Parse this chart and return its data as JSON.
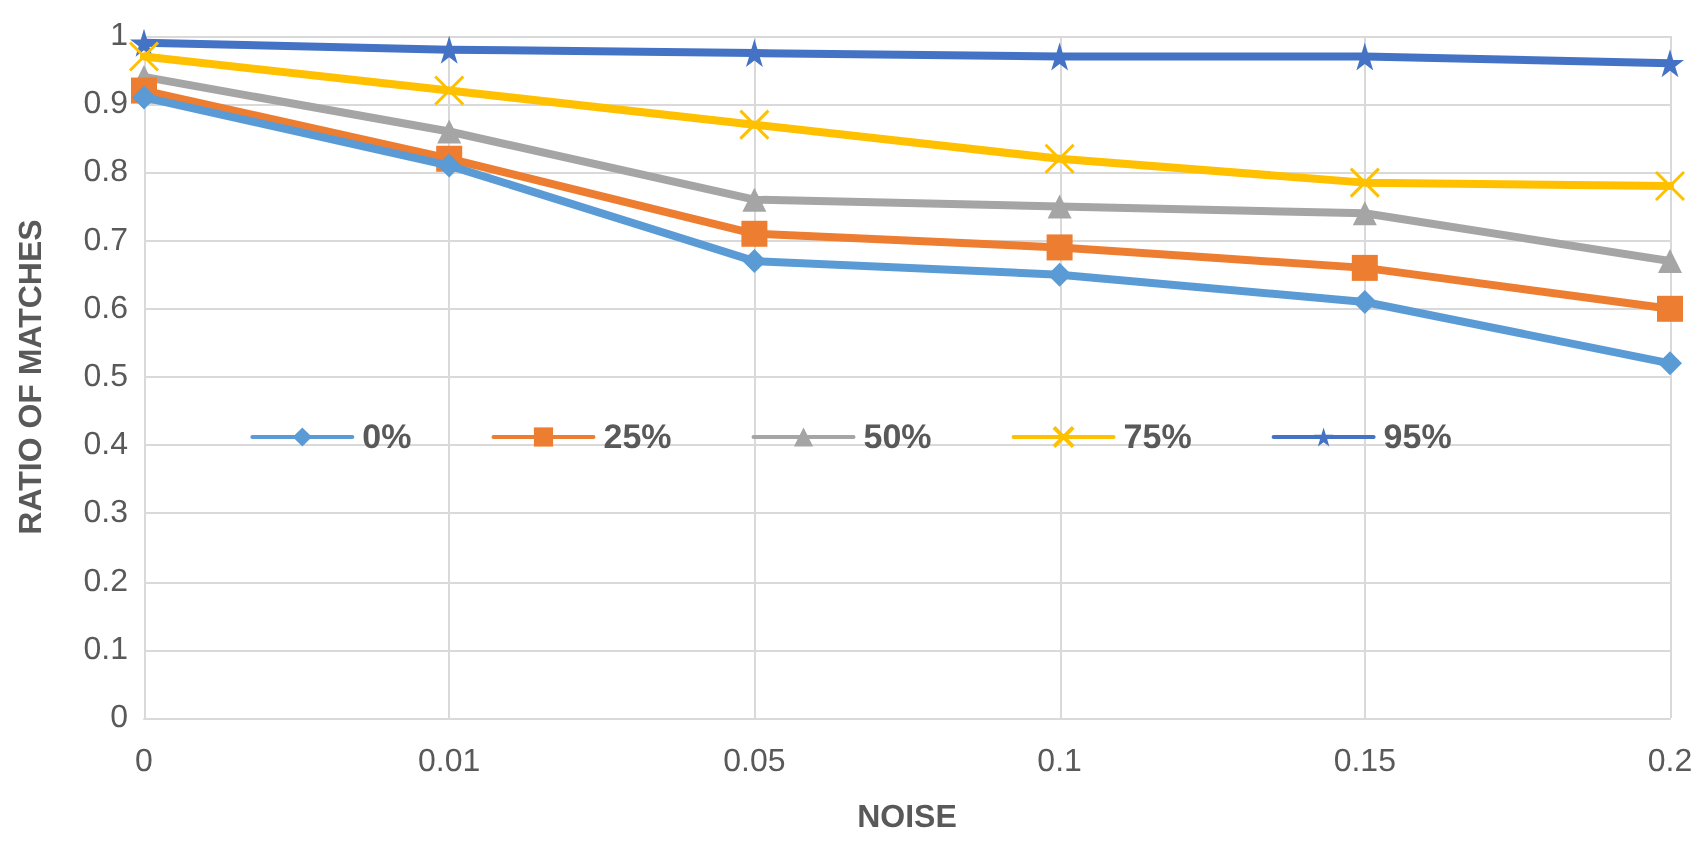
{
  "chart_data": {
    "type": "line",
    "xlabel": "NOISE",
    "ylabel": "RATIO OF MATCHES",
    "categories": [
      "0",
      "0.01",
      "0.05",
      "0.1",
      "0.15",
      "0.2"
    ],
    "series": [
      {
        "name": "0%",
        "color": "#5b9bd5",
        "marker": "diamond",
        "values": [
          0.91,
          0.81,
          0.67,
          0.65,
          0.61,
          0.52
        ]
      },
      {
        "name": "25%",
        "color": "#ed7d31",
        "marker": "square",
        "values": [
          0.92,
          0.82,
          0.71,
          0.69,
          0.66,
          0.6
        ]
      },
      {
        "name": "50%",
        "color": "#a5a5a5",
        "marker": "triangle",
        "values": [
          0.94,
          0.86,
          0.76,
          0.75,
          0.74,
          0.67
        ]
      },
      {
        "name": "75%",
        "color": "#ffc000",
        "marker": "cross",
        "values": [
          0.97,
          0.92,
          0.87,
          0.82,
          0.785,
          0.78
        ]
      },
      {
        "name": "95%",
        "color": "#4472c4",
        "marker": "star",
        "values": [
          0.99,
          0.98,
          0.975,
          0.97,
          0.97,
          0.96
        ]
      }
    ],
    "ylim": [
      0,
      1
    ],
    "yticks": [
      0,
      0.1,
      0.2,
      0.3,
      0.4,
      0.5,
      0.6,
      0.7,
      0.8,
      0.9,
      1
    ],
    "grid": true,
    "legend": "center",
    "line_style": "solid"
  }
}
